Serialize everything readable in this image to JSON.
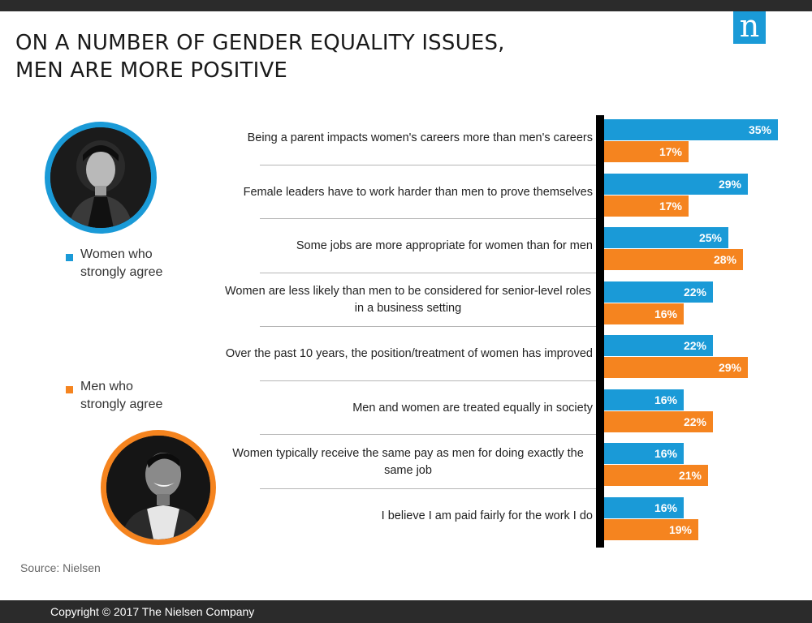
{
  "header": {
    "title_line1": "ON A NUMBER OF GENDER EQUALITY ISSUES,",
    "title_line2": "MEN ARE MORE POSITIVE",
    "logo_text": "n",
    "logo_color": "#1a9ad7"
  },
  "legend": {
    "women_label": "Women who\nstrongly agree",
    "men_label": "Men who\nstrongly agree",
    "women_icon": "woman-photo",
    "men_icon": "man-photo"
  },
  "source": "Source: Nielsen",
  "footer": {
    "copyright": "Copyright © 2017 The Nielsen Company"
  },
  "chart_data": {
    "type": "bar",
    "orientation": "horizontal",
    "unit": "%",
    "categories": [
      "Being a parent impacts women's careers more than men's careers",
      "Female leaders have to work harder than men to prove themselves",
      "Some jobs are more appropriate for women than for men",
      "Women are less likely than men to be considered for senior-level roles in a business setting",
      "Over the past 10 years, the position/treatment of women has improved",
      "Men and women are treated equally in society",
      "Women typically receive the same pay as men for doing exactly the same job",
      "I believe I am paid fairly for the work I do"
    ],
    "series": [
      {
        "name": "Women who strongly agree",
        "color": "#1a9ad7",
        "values": [
          35,
          29,
          25,
          22,
          22,
          16,
          16,
          16
        ]
      },
      {
        "name": "Men who strongly agree",
        "color": "#f5841f",
        "values": [
          17,
          17,
          28,
          16,
          29,
          22,
          21,
          19
        ]
      }
    ],
    "xlim": [
      0,
      35
    ],
    "grid": false,
    "legend_position": "left"
  }
}
